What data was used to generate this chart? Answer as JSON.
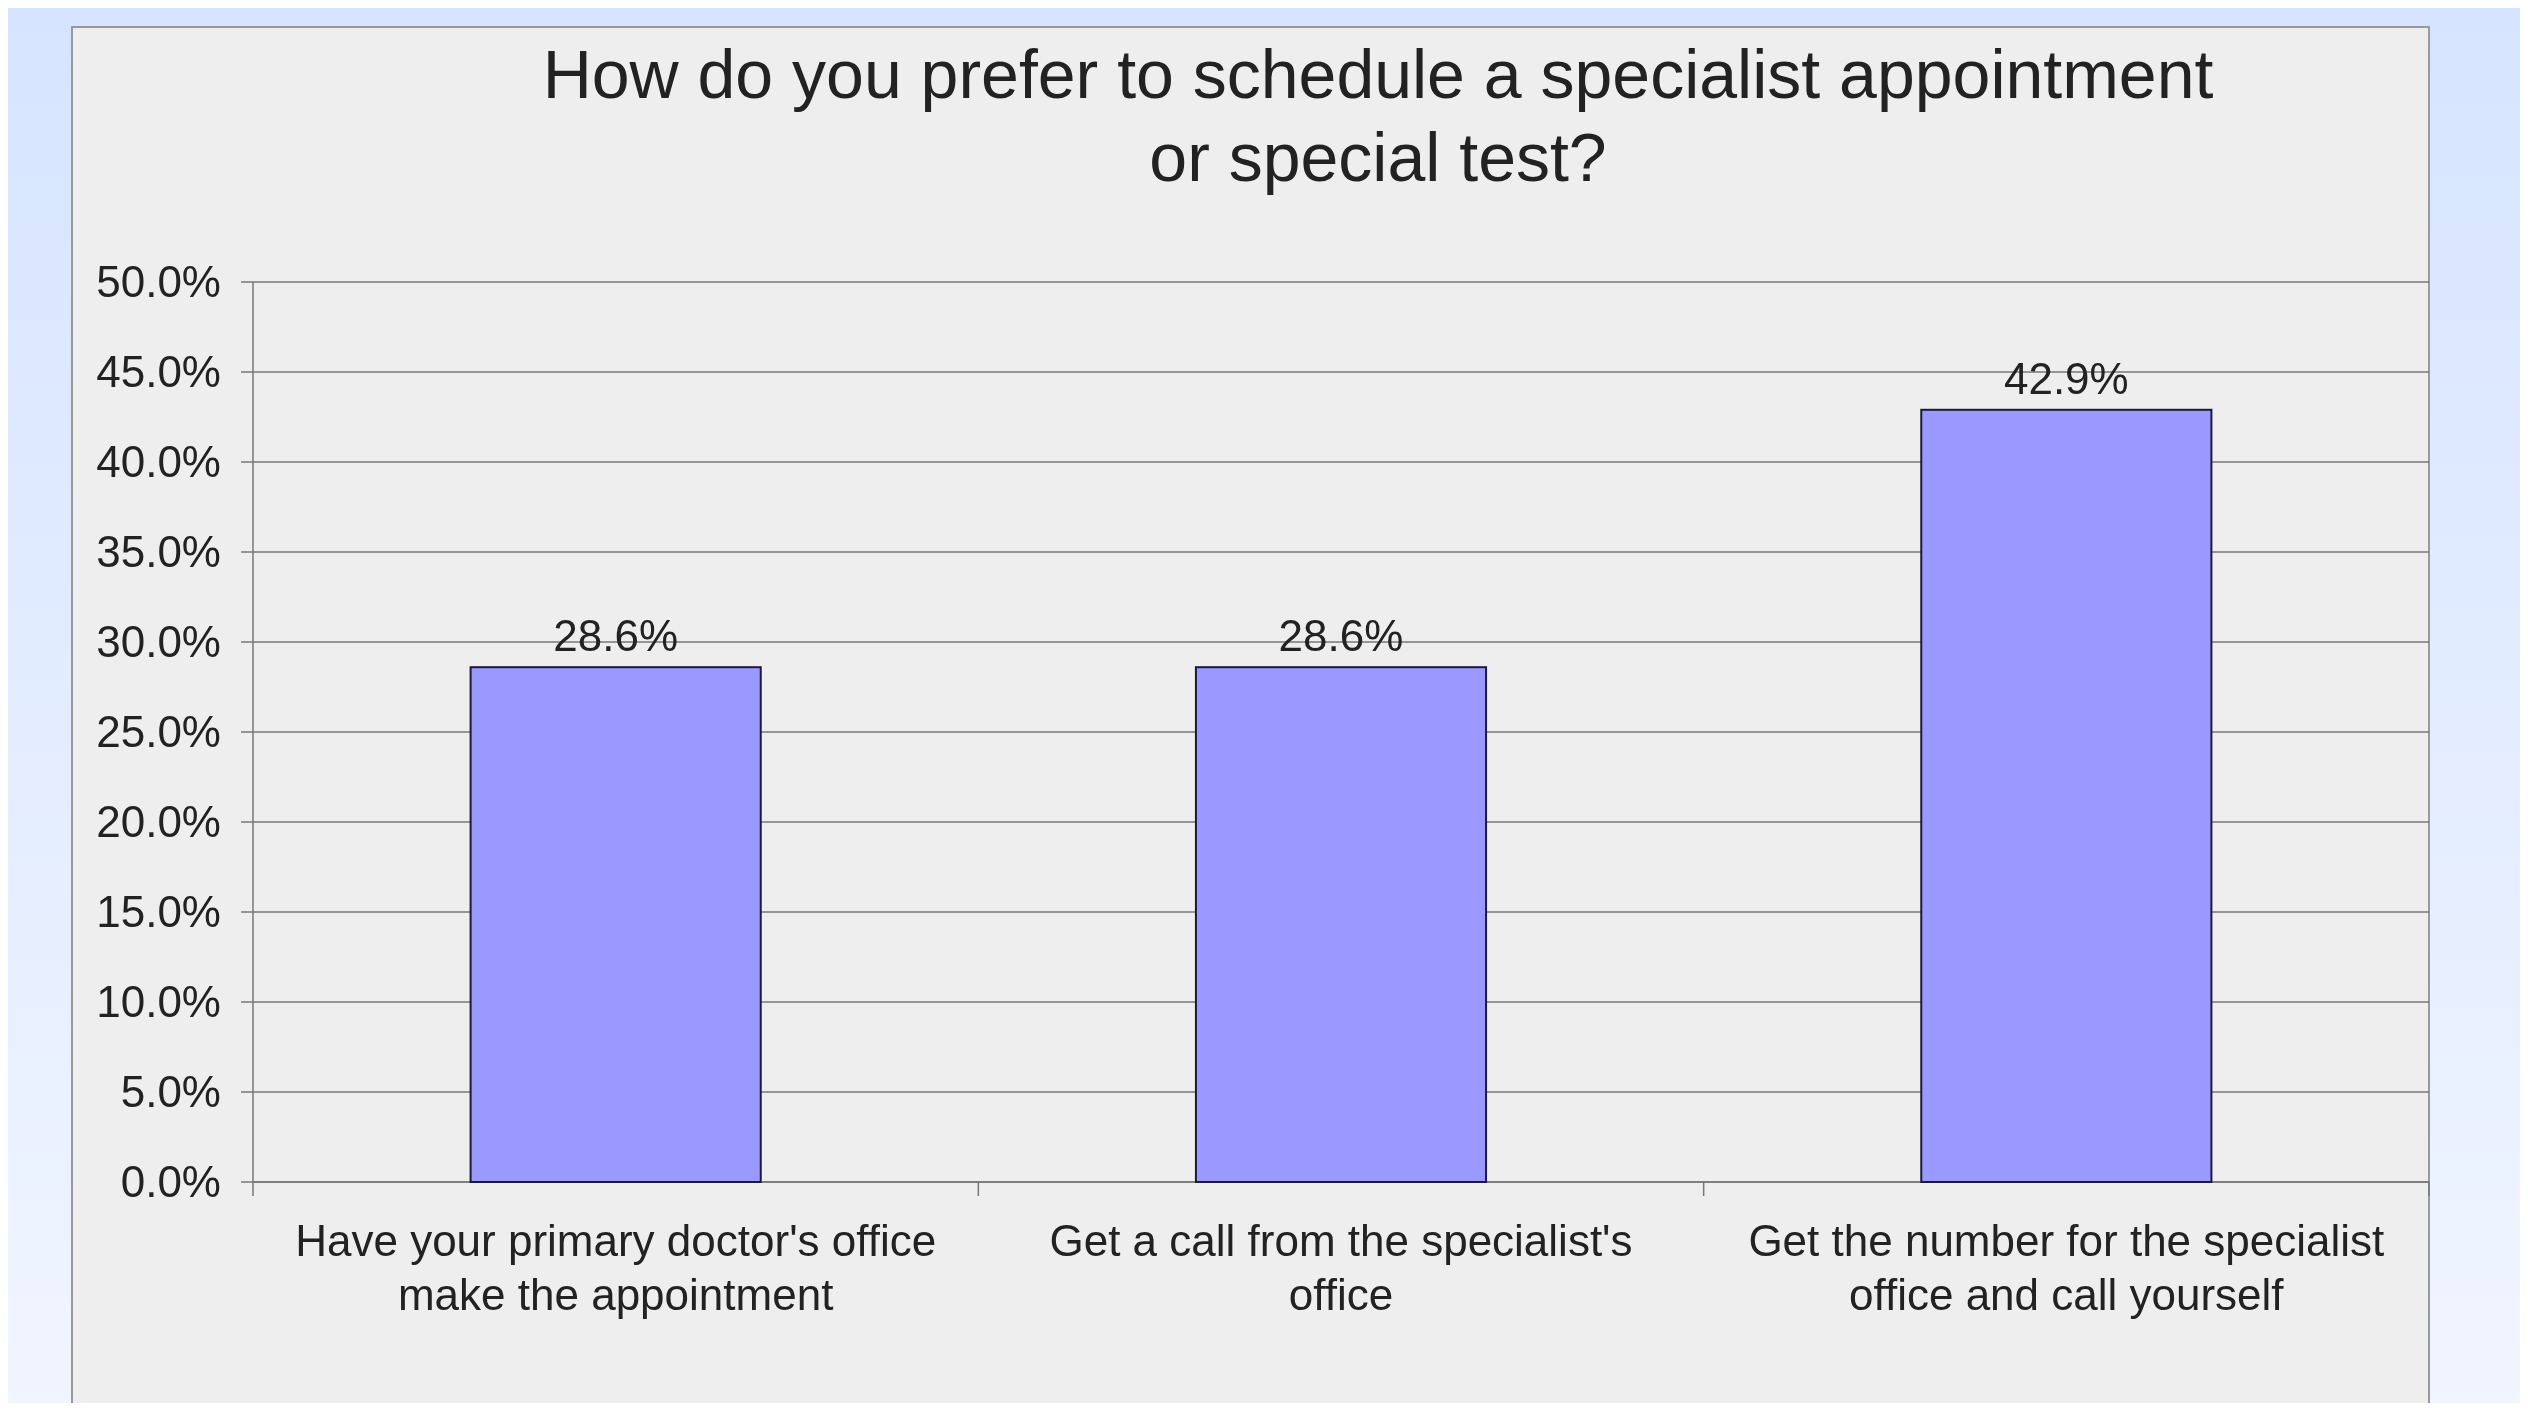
{
  "chart_data": {
    "type": "bar",
    "title": "How do you prefer to schedule a specialist appointment or special test?",
    "categories": [
      "Have your primary doctor's office make the appointment",
      "Get a call from the specialist's office",
      "Get the number for the specialist office and call yourself"
    ],
    "values": [
      28.6,
      28.6,
      42.9
    ],
    "value_labels": [
      "28.6%",
      "28.6%",
      "42.9%"
    ],
    "color": "#9999ff",
    "ylim": [
      0,
      50
    ],
    "yticks": [
      {
        "value": 0,
        "label": "0.0%"
      },
      {
        "value": 5,
        "label": "5.0%"
      },
      {
        "value": 10,
        "label": "10.0%"
      },
      {
        "value": 15,
        "label": "15.0%"
      },
      {
        "value": 20,
        "label": "20.0%"
      },
      {
        "value": 25,
        "label": "25.0%"
      },
      {
        "value": 30,
        "label": "30.0%"
      },
      {
        "value": 35,
        "label": "35.0%"
      },
      {
        "value": 40,
        "label": "40.0%"
      },
      {
        "value": 45,
        "label": "45.0%"
      },
      {
        "value": 50,
        "label": "50.0%"
      }
    ],
    "grid": "y"
  }
}
